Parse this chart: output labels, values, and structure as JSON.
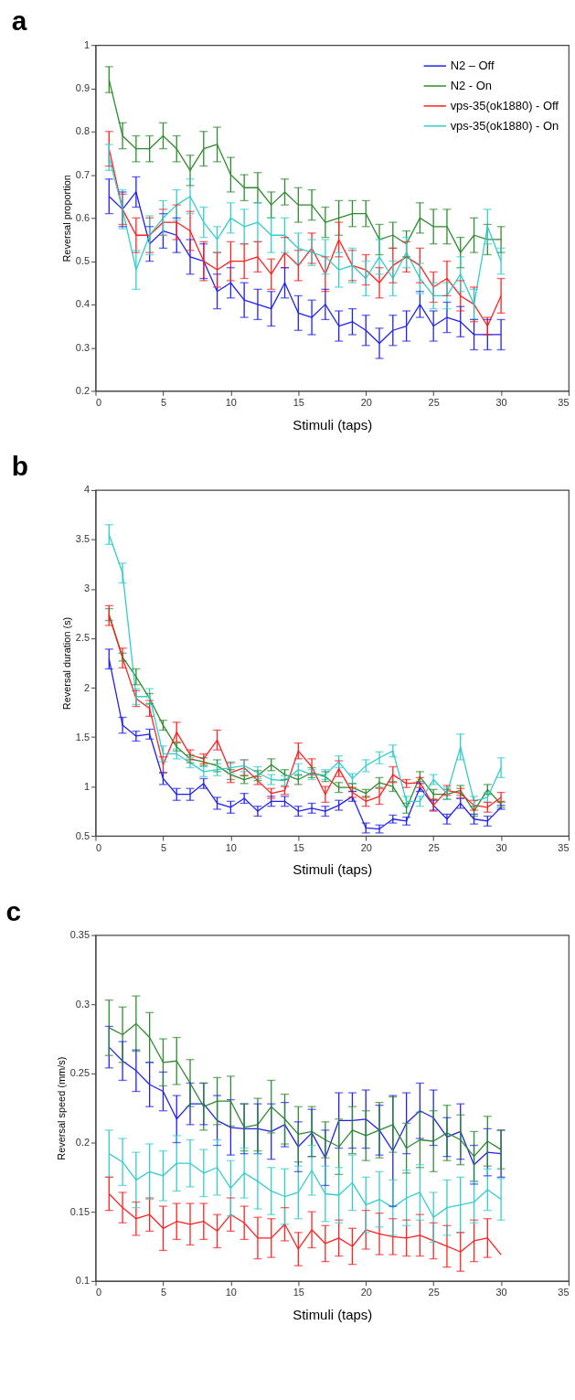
{
  "chart_data": [
    {
      "type": "line",
      "title": "a",
      "xlabel": "Stimuli (taps)",
      "ylabel": "Reversal proportion",
      "xlim": [
        0,
        35
      ],
      "xticks": [
        0,
        5,
        10,
        15,
        20,
        25,
        30,
        35
      ],
      "ylim": [
        0.2,
        1
      ],
      "yticks": [
        0.2,
        0.3,
        0.4,
        0.5,
        0.6,
        0.7,
        0.8,
        0.9,
        1
      ],
      "grid": false,
      "legend": "top right",
      "x": [
        1,
        2,
        3,
        4,
        5,
        6,
        7,
        8,
        9,
        10,
        11,
        12,
        13,
        14,
        15,
        16,
        17,
        18,
        19,
        20,
        21,
        22,
        23,
        24,
        25,
        26,
        27,
        28,
        29,
        30
      ],
      "series": [
        {
          "name": "N2 – Off",
          "color": "#2020f0",
          "values": [
            0.65,
            0.62,
            0.66,
            0.54,
            0.57,
            0.56,
            0.51,
            0.5,
            0.43,
            0.45,
            0.41,
            0.4,
            0.39,
            0.45,
            0.38,
            0.37,
            0.4,
            0.35,
            0.36,
            0.34,
            0.31,
            0.34,
            0.35,
            0.4,
            0.35,
            0.37,
            0.36,
            0.33,
            0.33,
            0.33
          ],
          "errors": [
            0.04,
            0.04,
            0.035,
            0.04,
            0.04,
            0.04,
            0.04,
            0.04,
            0.04,
            0.035,
            0.04,
            0.035,
            0.04,
            0.035,
            0.04,
            0.04,
            0.035,
            0.035,
            0.03,
            0.035,
            0.035,
            0.035,
            0.035,
            0.03,
            0.035,
            0.035,
            0.035,
            0.035,
            0.035,
            0.035
          ]
        },
        {
          "name": "N2 - On",
          "color": "#2e8b2e",
          "values": [
            0.92,
            0.79,
            0.76,
            0.76,
            0.79,
            0.76,
            0.71,
            0.76,
            0.77,
            0.7,
            0.67,
            0.67,
            0.63,
            0.66,
            0.63,
            0.63,
            0.59,
            0.6,
            0.61,
            0.61,
            0.55,
            0.56,
            0.54,
            0.6,
            0.58,
            0.58,
            0.52,
            0.56,
            0.55,
            0.55
          ],
          "errors": [
            0.03,
            0.03,
            0.03,
            0.03,
            0.03,
            0.03,
            0.035,
            0.04,
            0.04,
            0.04,
            0.03,
            0.035,
            0.03,
            0.03,
            0.04,
            0.035,
            0.035,
            0.04,
            0.03,
            0.03,
            0.035,
            0.03,
            0.03,
            0.035,
            0.04,
            0.04,
            0.035,
            0.04,
            0.035,
            0.03
          ]
        },
        {
          "name": "vps-35(ok1880) - Off",
          "color": "#ff2020",
          "values": [
            0.76,
            0.62,
            0.56,
            0.56,
            0.59,
            0.59,
            0.57,
            0.5,
            0.48,
            0.5,
            0.5,
            0.51,
            0.47,
            0.52,
            0.49,
            0.53,
            0.47,
            0.55,
            0.49,
            0.48,
            0.45,
            0.49,
            0.51,
            0.49,
            0.44,
            0.46,
            0.42,
            0.4,
            0.35,
            0.42
          ],
          "errors": [
            0.04,
            0.035,
            0.04,
            0.04,
            0.03,
            0.04,
            0.045,
            0.045,
            0.04,
            0.045,
            0.04,
            0.035,
            0.035,
            0.035,
            0.035,
            0.035,
            0.04,
            0.04,
            0.035,
            0.035,
            0.035,
            0.04,
            0.035,
            0.04,
            0.035,
            0.04,
            0.035,
            0.04,
            0.02,
            0.04
          ]
        },
        {
          "name": "vps-35(ok1880) - On",
          "color": "#33cccc",
          "values": [
            0.74,
            0.62,
            0.48,
            0.56,
            0.6,
            0.63,
            0.65,
            0.59,
            0.55,
            0.6,
            0.58,
            0.59,
            0.56,
            0.56,
            0.53,
            0.52,
            0.51,
            0.48,
            0.49,
            0.46,
            0.51,
            0.46,
            0.52,
            0.46,
            0.42,
            0.42,
            0.47,
            0.4,
            0.58,
            0.5
          ],
          "errors": [
            0.03,
            0.045,
            0.045,
            0.045,
            0.04,
            0.035,
            0.04,
            0.035,
            0.03,
            0.035,
            0.04,
            0.045,
            0.04,
            0.04,
            0.035,
            0.03,
            0.04,
            0.04,
            0.04,
            0.04,
            0.04,
            0.04,
            0.035,
            0.035,
            0.03,
            0.03,
            0.04,
            0.035,
            0.04,
            0.03
          ]
        }
      ]
    },
    {
      "type": "line",
      "title": "b",
      "xlabel": "Stimuli (taps)",
      "ylabel": "Reversal duration (s)",
      "xlim": [
        0,
        35
      ],
      "xticks": [
        0,
        5,
        10,
        15,
        20,
        25,
        30,
        35
      ],
      "ylim": [
        0.5,
        4
      ],
      "yticks": [
        0.5,
        1,
        1.5,
        2,
        2.5,
        3,
        3.5,
        4
      ],
      "grid": false,
      "legend": "top right",
      "x": [
        1,
        2,
        3,
        4,
        5,
        6,
        7,
        8,
        9,
        10,
        11,
        12,
        13,
        14,
        15,
        16,
        17,
        18,
        19,
        20,
        21,
        22,
        23,
        24,
        25,
        26,
        27,
        28,
        29,
        30
      ],
      "series": [
        {
          "name": "N2 – Off",
          "color": "#2020f0",
          "values": [
            2.29,
            1.62,
            1.51,
            1.53,
            1.08,
            0.92,
            0.92,
            1.03,
            0.83,
            0.79,
            0.88,
            0.75,
            0.85,
            0.85,
            0.75,
            0.78,
            0.75,
            0.81,
            0.9,
            0.58,
            0.57,
            0.67,
            0.65,
            0.99,
            0.81,
            0.67,
            0.83,
            0.67,
            0.65,
            0.79
          ],
          "errors": [
            0.1,
            0.08,
            0.05,
            0.05,
            0.06,
            0.06,
            0.06,
            0.05,
            0.06,
            0.06,
            0.05,
            0.05,
            0.05,
            0.05,
            0.05,
            0.05,
            0.05,
            0.05,
            0.05,
            0.05,
            0.04,
            0.04,
            0.04,
            0.04,
            0.05,
            0.05,
            0.05,
            0.05,
            0.05,
            0.02
          ]
        },
        {
          "name": "N2 - On",
          "color": "#2e8b2e",
          "values": [
            2.74,
            2.31,
            2.11,
            1.89,
            1.62,
            1.4,
            1.28,
            1.25,
            1.21,
            1.12,
            1.07,
            1.11,
            1.22,
            1.12,
            1.07,
            1.14,
            1.1,
            0.99,
            0.99,
            0.93,
            1.04,
            1.0,
            0.78,
            1.1,
            0.92,
            0.92,
            0.96,
            0.75,
            0.97,
            0.82
          ],
          "errors": [
            0.06,
            0.04,
            0.08,
            0.05,
            0.05,
            0.04,
            0.04,
            0.04,
            0.06,
            0.05,
            0.04,
            0.05,
            0.06,
            0.05,
            0.05,
            0.05,
            0.05,
            0.05,
            0.04,
            0.04,
            0.05,
            0.05,
            0.05,
            0.05,
            0.05,
            0.05,
            0.05,
            0.05,
            0.05,
            0.03
          ]
        },
        {
          "name": "vps-35(ok1880) - Off",
          "color": "#ff2020",
          "values": [
            2.73,
            2.3,
            1.89,
            1.79,
            1.22,
            1.55,
            1.32,
            1.28,
            1.47,
            1.14,
            1.19,
            1.06,
            0.93,
            0.96,
            1.36,
            1.2,
            0.92,
            1.18,
            0.94,
            0.85,
            0.9,
            1.12,
            1.03,
            1.04,
            0.81,
            0.96,
            0.93,
            0.81,
            0.79,
            0.89
          ],
          "errors": [
            0.1,
            0.1,
            0.08,
            0.08,
            0.08,
            0.1,
            0.05,
            0.05,
            0.1,
            0.1,
            0.08,
            0.04,
            0.05,
            0.04,
            0.08,
            0.08,
            0.08,
            0.08,
            0.05,
            0.05,
            0.08,
            0.08,
            0.04,
            0.05,
            0.06,
            0.05,
            0.05,
            0.05,
            0.05,
            0.05
          ]
        },
        {
          "name": "vps-35(ok1880) - On",
          "color": "#33cccc",
          "values": [
            3.55,
            3.16,
            1.91,
            1.91,
            1.33,
            1.33,
            1.24,
            1.15,
            1.17,
            1.19,
            1.21,
            1.14,
            1.07,
            1.06,
            1.17,
            1.12,
            1.12,
            1.25,
            1.08,
            1.21,
            1.29,
            1.36,
            0.85,
            0.85,
            1.07,
            0.93,
            1.4,
            0.85,
            0.89,
            1.19
          ],
          "errors": [
            0.1,
            0.1,
            0.08,
            0.08,
            0.08,
            0.05,
            0.05,
            0.05,
            0.06,
            0.06,
            0.06,
            0.06,
            0.05,
            0.05,
            0.06,
            0.05,
            0.05,
            0.06,
            0.05,
            0.06,
            0.06,
            0.06,
            0.05,
            0.05,
            0.05,
            0.06,
            0.13,
            0.05,
            0.05,
            0.1
          ]
        }
      ]
    },
    {
      "type": "line",
      "title": "c",
      "xlabel": "Stimuli (taps)",
      "ylabel": "Reversal speed (mm/s)",
      "xlim": [
        0,
        35
      ],
      "xticks": [
        0,
        5,
        10,
        15,
        20,
        25,
        30,
        35
      ],
      "ylim": [
        0.1,
        0.35
      ],
      "yticks": [
        0.1,
        0.15,
        0.2,
        0.25,
        0.3,
        0.35
      ],
      "grid": false,
      "legend": "top right",
      "x": [
        1,
        2,
        3,
        4,
        5,
        6,
        7,
        8,
        9,
        10,
        11,
        12,
        13,
        14,
        15,
        16,
        17,
        18,
        19,
        20,
        21,
        22,
        23,
        24,
        25,
        26,
        27,
        28,
        29,
        30
      ],
      "series": [
        {
          "name": "N2 – Off",
          "color": "#2020f0",
          "values": [
            0.269,
            0.259,
            0.252,
            0.242,
            0.237,
            0.217,
            0.228,
            0.228,
            0.216,
            0.211,
            0.21,
            0.21,
            0.208,
            0.213,
            0.197,
            0.207,
            0.189,
            0.216,
            0.216,
            0.217,
            0.209,
            0.194,
            0.214,
            0.223,
            0.218,
            0.204,
            0.208,
            0.184,
            0.193,
            0.192
          ],
          "errors": [
            0.015,
            0.014,
            0.015,
            0.016,
            0.014,
            0.017,
            0.015,
            0.015,
            0.018,
            0.02,
            0.018,
            0.018,
            0.02,
            0.016,
            0.018,
            0.017,
            0.02,
            0.02,
            0.02,
            0.021,
            0.018,
            0.04,
            0.022,
            0.02,
            0.02,
            0.014,
            0.02,
            0.014,
            0.017,
            0.017
          ]
        },
        {
          "name": "N2 - On",
          "color": "#2e8b2e",
          "values": [
            0.283,
            0.278,
            0.286,
            0.276,
            0.258,
            0.259,
            0.243,
            0.226,
            0.23,
            0.23,
            0.211,
            0.213,
            0.226,
            0.217,
            0.206,
            0.208,
            0.202,
            0.197,
            0.209,
            0.205,
            0.209,
            0.213,
            0.196,
            0.202,
            0.201,
            0.207,
            0.202,
            0.19,
            0.201,
            0.195
          ],
          "errors": [
            0.02,
            0.02,
            0.02,
            0.018,
            0.017,
            0.017,
            0.017,
            0.017,
            0.017,
            0.018,
            0.017,
            0.019,
            0.019,
            0.018,
            0.02,
            0.018,
            0.013,
            0.02,
            0.017,
            0.018,
            0.02,
            0.02,
            0.018,
            0.02,
            0.022,
            0.02,
            0.018,
            0.018,
            0.018,
            0.014
          ]
        },
        {
          "name": "vps-35(ok1880) - Off",
          "color": "#ff2020",
          "values": [
            0.163,
            0.153,
            0.145,
            0.148,
            0.138,
            0.143,
            0.141,
            0.143,
            0.136,
            0.148,
            0.142,
            0.131,
            0.131,
            0.141,
            0.123,
            0.137,
            0.127,
            0.131,
            0.125,
            0.137,
            0.134,
            0.132,
            0.131,
            0.133,
            0.129,
            0.125,
            0.121,
            0.129,
            0.131,
            0.119
          ],
          "errors": [
            0.012,
            0.011,
            0.012,
            0.012,
            0.016,
            0.013,
            0.015,
            0.013,
            0.012,
            0.012,
            0.012,
            0.015,
            0.014,
            0.012,
            0.012,
            0.013,
            0.013,
            0.013,
            0.013,
            0.014,
            0.015,
            0.013,
            0.013,
            0.015,
            0.013,
            0.015,
            0.014,
            0.015,
            0.014,
            null
          ]
        },
        {
          "name": "vps-35(ok1880) - On",
          "color": "#33cccc",
          "values": [
            0.192,
            0.186,
            0.173,
            0.179,
            0.176,
            0.185,
            0.185,
            0.178,
            0.182,
            0.167,
            0.178,
            0.172,
            0.165,
            0.161,
            0.164,
            0.18,
            0.163,
            0.162,
            0.171,
            0.155,
            0.159,
            0.153,
            0.16,
            0.164,
            0.146,
            0.153,
            0.155,
            0.157,
            0.166,
            0.159
          ],
          "errors": [
            0.017,
            0.017,
            0.02,
            0.02,
            0.018,
            0.02,
            0.017,
            0.017,
            0.02,
            0.02,
            0.018,
            0.02,
            0.017,
            0.02,
            0.019,
            0.018,
            0.02,
            0.02,
            0.02,
            0.02,
            0.02,
            0.02,
            0.02,
            0.02,
            0.018,
            0.02,
            0.02,
            0.015,
            0.015,
            0.015
          ]
        }
      ]
    }
  ]
}
